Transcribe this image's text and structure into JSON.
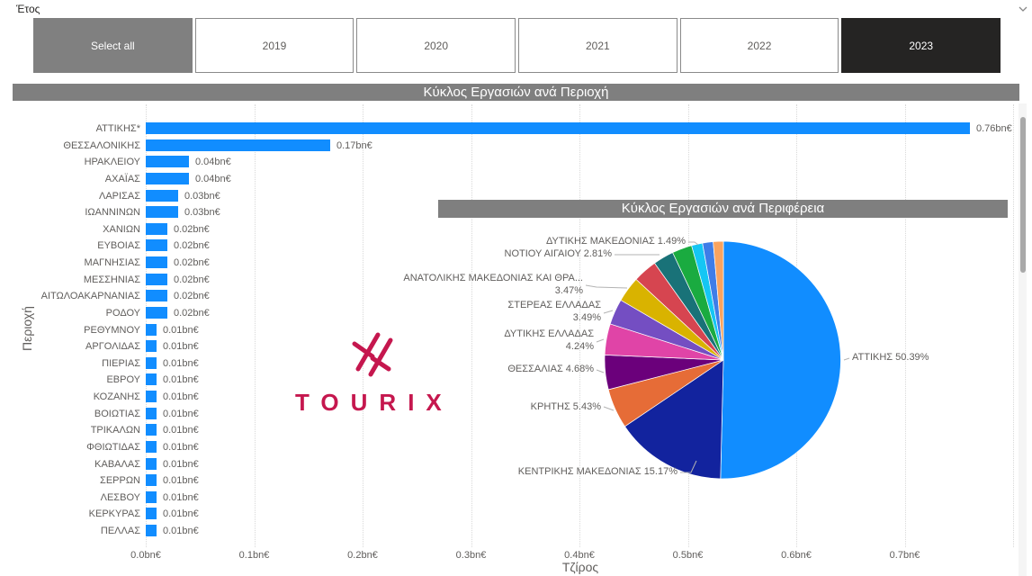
{
  "slicer": {
    "title": "Έτος",
    "select_all_label": "Select all",
    "years": [
      "2019",
      "2020",
      "2021",
      "2022",
      "2023"
    ],
    "selected_year": "2023"
  },
  "logo": {
    "text": "TOURIX",
    "color": "#C5174E"
  },
  "colors": {
    "bar": "#118DFF",
    "title_bar_bg": "#7F7F7F",
    "select_all_bg": "#808080",
    "selected_year_bg": "#252423",
    "leader_line": "#b3b3b3"
  },
  "chart_data": [
    {
      "type": "bar",
      "orientation": "horizontal",
      "title": "Κύκλος Εργασιών ανά Περιοχή",
      "xlabel": "Τζίρος",
      "ylabel": "Περιοχή",
      "categories": [
        "ΑΤΤΙΚΗΣ*",
        "ΘΕΣΣΑΛΟΝΙΚΗΣ",
        "ΗΡΑΚΛΕΙΟΥ",
        "ΑΧΑΪΑΣ",
        "ΛΑΡΙΣΑΣ",
        "ΙΩΑΝΝΙΝΩΝ",
        "ΧΑΝΙΩΝ",
        "ΕΥΒΟΙΑΣ",
        "ΜΑΓΝΗΣΙΑΣ",
        "ΜΕΣΣΗΝΙΑΣ",
        "ΑΙΤΩΛΟΑΚΑΡΝΑΝΙΑΣ",
        "ΡΟΔΟΥ",
        "ΡΕΘΥΜΝΟΥ",
        "ΑΡΓΟΛΙΔΑΣ",
        "ΠΙΕΡΙΑΣ",
        "ΕΒΡΟΥ",
        "ΚΟΖΑΝΗΣ",
        "ΒΟΙΩΤΙΑΣ",
        "ΤΡΙΚΑΛΩΝ",
        "ΦΘΙΩΤΙΔΑΣ",
        "ΚΑΒΑΛΑΣ",
        "ΣΕΡΡΩΝ",
        "ΛΕΣΒΟΥ",
        "ΚΕΡΚΥΡΑΣ",
        "ΠΕΛΛΑΣ"
      ],
      "values": [
        0.76,
        0.17,
        0.04,
        0.04,
        0.03,
        0.03,
        0.02,
        0.02,
        0.02,
        0.02,
        0.02,
        0.02,
        0.01,
        0.01,
        0.01,
        0.01,
        0.01,
        0.01,
        0.01,
        0.01,
        0.01,
        0.01,
        0.01,
        0.01,
        0.01
      ],
      "value_suffix": "bn€",
      "x_ticks": [
        "0.0bn€",
        "0.1bn€",
        "0.2bn€",
        "0.3bn€",
        "0.4bn€",
        "0.5bn€",
        "0.6bn€",
        "0.7bn€"
      ],
      "xlim": [
        0,
        0.8
      ],
      "bar_color": "#118DFF",
      "grid": "vertical-dotted",
      "value_labels_position": "outside-end"
    },
    {
      "type": "pie",
      "title": "Κύκλος Εργασιών ανά Περιφέρεια",
      "start_angle": "12-oclock",
      "direction": "clockwise",
      "slices": [
        {
          "label": "ΑΤΤΙΚΗΣ",
          "pct": 50.39,
          "color": "#118DFF"
        },
        {
          "label": "ΚΕΝΤΡΙΚΗΣ ΜΑΚΕΔΟΝΙΑΣ",
          "pct": 15.17,
          "color": "#12239E"
        },
        {
          "label": "ΚΡΗΤΗΣ",
          "pct": 5.43,
          "color": "#E66C37"
        },
        {
          "label": "ΘΕΣΣΑΛΙΑΣ",
          "pct": 4.68,
          "color": "#6B007B"
        },
        {
          "label": "ΔΥΤΙΚΗΣ ΕΛΛΑΔΑΣ",
          "pct": 4.24,
          "color": "#E044A7"
        },
        {
          "label": "ΣΤΕΡΕΑΣ ΕΛΛΑΔΑΣ",
          "pct": 3.49,
          "color": "#744EC2"
        },
        {
          "label": "ΑΝΑΤΟΛΙΚΗΣ ΜΑΚΕΔΟΝΙΑΣ ΚΑΙ ΘΡΑ...",
          "pct": 3.47,
          "color": "#D9B300"
        },
        {
          "label": "",
          "pct": 3.3,
          "color": "#D64550"
        },
        {
          "label": "ΝΟΤΙΟΥ ΑΙΓΑΙΟΥ",
          "pct": 2.81,
          "color": "#197278"
        },
        {
          "label": "",
          "pct": 2.7,
          "color": "#1AAB40"
        },
        {
          "label": "ΔΥΤΙΚΗΣ ΜΑΚΕΔΟΝΙΑΣ",
          "pct": 1.49,
          "color": "#15C6F4"
        },
        {
          "label": "",
          "pct": 1.45,
          "color": "#3E7DE8"
        },
        {
          "label": "",
          "pct": 1.38,
          "color": "#F9A35F"
        }
      ]
    }
  ]
}
